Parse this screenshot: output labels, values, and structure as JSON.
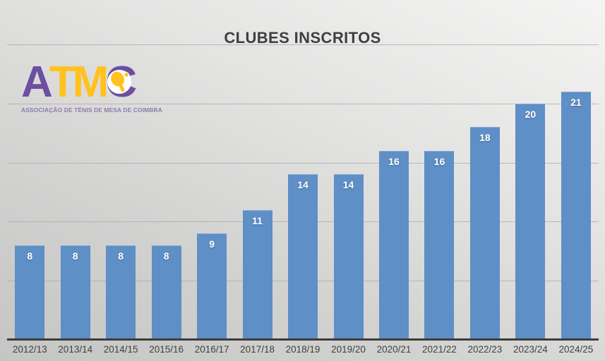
{
  "chart_data": {
    "type": "bar",
    "title": "CLUBES INSCRITOS",
    "categories": [
      "2012/13",
      "2013/14",
      "2014/15",
      "2015/16",
      "2016/17",
      "2017/18",
      "2018/19",
      "2019/20",
      "2020/21",
      "2021/22",
      "2022/23",
      "2023/24",
      "2024/25"
    ],
    "values": [
      8,
      8,
      8,
      8,
      9,
      11,
      14,
      14,
      16,
      16,
      18,
      20,
      21
    ],
    "xlabel": "",
    "ylabel": "",
    "ylim": [
      0,
      25
    ],
    "grid": true,
    "grid_step": 5,
    "legend_position": "none",
    "bar_color": "#5E8FC7",
    "value_label_color": "#FFFFFF",
    "gridline_color": "#A8A8A8",
    "axis_line_color": "#3C3C3C",
    "title_color": "#3F3F3F",
    "tick_label_color": "#404040"
  },
  "logo": {
    "letters": [
      {
        "char": "A",
        "color": "purple"
      },
      {
        "char": "T",
        "color": "yellow"
      },
      {
        "char": "M",
        "color": "yellow"
      },
      {
        "char": "C",
        "color": "purple"
      }
    ],
    "subtitle": "ASSOCIAÇÃO DE TÉNIS DE MESA DE COIMBRA",
    "colors": {
      "purple": "#6C4FA1",
      "yellow": "#FFC21E",
      "subtitle": "#8A7BAD"
    }
  }
}
